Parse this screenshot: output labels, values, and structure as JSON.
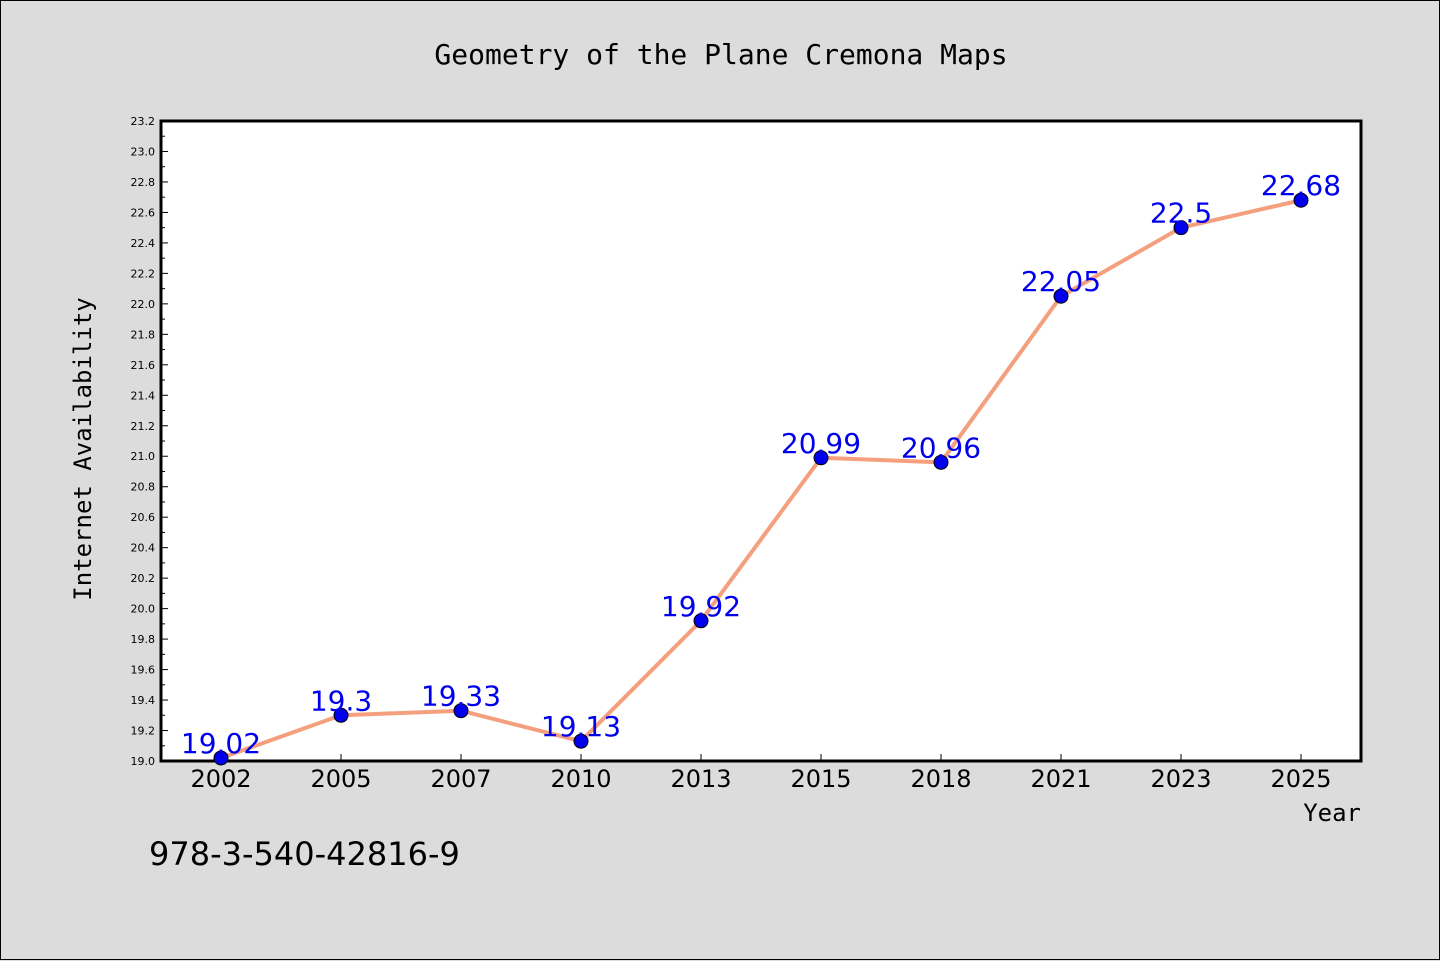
{
  "chart_data": {
    "type": "line",
    "title": "Geometry of the Plane Cremona Maps",
    "xlabel": "Year",
    "ylabel": "Internet Availability",
    "categories": [
      "2002",
      "2005",
      "2007",
      "2010",
      "2013",
      "2015",
      "2018",
      "2021",
      "2023",
      "2025"
    ],
    "values": [
      19.02,
      19.3,
      19.33,
      19.13,
      19.92,
      20.99,
      20.96,
      22.05,
      22.5,
      22.68
    ],
    "data_labels": [
      "19.02",
      "19.3",
      "19.33",
      "19.13",
      "19.92",
      "20.99",
      "20.96",
      "22.05",
      "22.5",
      "22.68"
    ],
    "ylim": [
      19.0,
      23.2
    ],
    "y_ticks": [
      "19.0",
      "19.2",
      "19.4",
      "19.6",
      "19.8",
      "20.0",
      "20.2",
      "20.4",
      "20.6",
      "20.8",
      "21.0",
      "21.2",
      "21.4",
      "21.6",
      "21.8",
      "22.0",
      "22.2",
      "22.4",
      "22.6",
      "22.8",
      "23.0",
      "23.2"
    ],
    "grid": false,
    "line_color": "#f4a07e",
    "marker_color": "#0000ee",
    "label_color": "#0000ee"
  },
  "annotation": "978-3-540-42816-9"
}
